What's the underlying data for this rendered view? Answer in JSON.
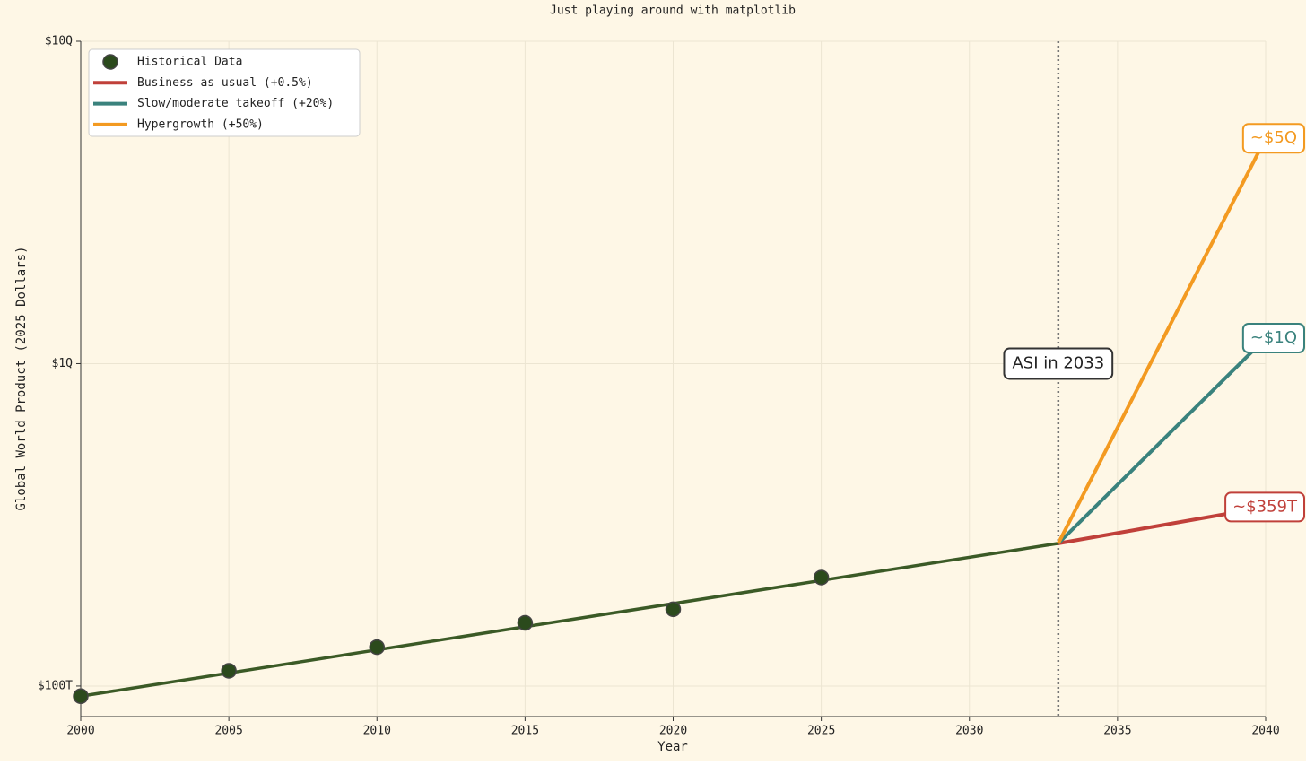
{
  "chart_data": {
    "type": "line",
    "title": "Just playing around with matplotlib",
    "xlabel": "Year",
    "ylabel": "Global World Product (2025 Dollars)",
    "xlim": [
      2000,
      2040
    ],
    "xticks": [
      2000,
      2005,
      2010,
      2015,
      2020,
      2025,
      2030,
      2035,
      2040
    ],
    "ylim": [
      80400000000000,
      10000000000000000
    ],
    "yticks": [
      {
        "value": 100000000000000,
        "label": "$100T"
      },
      {
        "value": 1000000000000000,
        "label": "$1Q"
      },
      {
        "value": 10000000000000000,
        "label": "$10Q"
      }
    ],
    "log_y": true,
    "grid": true,
    "legend": "upper left",
    "background": "#fef7e6",
    "trend": {
      "color": "#3b5a26",
      "x": [
        2000,
        2033
      ],
      "values": [
        93000000000000,
        277000000000000
      ]
    },
    "vline": {
      "x": 2033,
      "label": "ASI in 2033",
      "color": "#777777"
    },
    "series": [
      {
        "name": "Historical Data",
        "color": "#2b4a1c",
        "marker": true,
        "x": [
          2000,
          2005,
          2010,
          2015,
          2020,
          2025
        ],
        "values": [
          93000000000000,
          111500000000000,
          132000000000000,
          157000000000000,
          173000000000000,
          217000000000000
        ]
      },
      {
        "name": "Business as usual (+0.5%)",
        "color": "#c0403a",
        "x": [
          2033,
          2040
        ],
        "values": [
          277000000000000,
          359000000000000
        ],
        "value_labels": [
          null,
          "~$359T"
        ]
      },
      {
        "name": "Slow/moderate takeoff (+20%)",
        "color": "#3a827d",
        "x": [
          2033,
          2040
        ],
        "values": [
          277000000000000,
          1200000000000000
        ],
        "value_labels": [
          null,
          "~$1Q"
        ]
      },
      {
        "name": "Hypergrowth (+50%)",
        "color": "#f39a21",
        "x": [
          2033,
          2040
        ],
        "values": [
          277000000000000,
          5000000000000000
        ],
        "value_labels": [
          null,
          "~$5Q"
        ]
      }
    ]
  }
}
